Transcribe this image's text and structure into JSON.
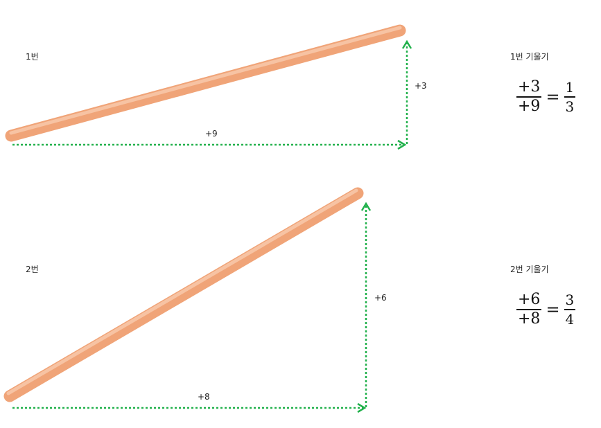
{
  "colors": {
    "rod": "#F0A478",
    "rod_light": "#F9CBAE",
    "rod_dark": "#D98A5E",
    "arrow": "#22B14C"
  },
  "figures": [
    {
      "label": "1번",
      "run_label": "+9",
      "rise_label": "+3",
      "slope_title": "1번 기울기",
      "slope": {
        "num": "+3",
        "den": "+9",
        "reduced_num": "1",
        "reduced_den": "3"
      }
    },
    {
      "label": "2번",
      "run_label": "+8",
      "rise_label": "+6",
      "slope_title": "2번 기울기",
      "slope": {
        "num": "+6",
        "den": "+8",
        "reduced_num": "3",
        "reduced_den": "4"
      }
    }
  ]
}
